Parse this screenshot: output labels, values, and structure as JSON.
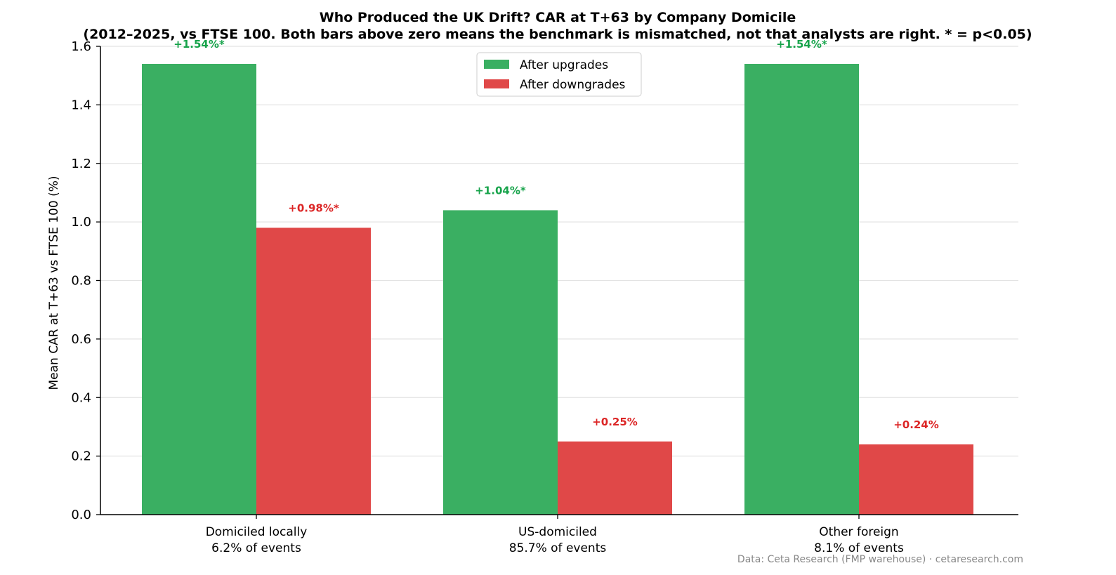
{
  "chart_data": {
    "type": "bar",
    "title": "Who Produced the UK Drift? CAR at T+63 by Company Domicile",
    "subtitle": "(2012–2025, vs FTSE 100. Both bars above zero means the benchmark is mismatched, not that analysts are right. * = p<0.05)",
    "ylabel": "Mean CAR at T+63 vs FTSE 100 (%)",
    "xlabel": "",
    "ylim": [
      0,
      1.6
    ],
    "yticks": [
      "0.0",
      "0.2",
      "0.4",
      "0.6",
      "0.8",
      "1.0",
      "1.2",
      "1.4",
      "1.6"
    ],
    "grid": "horizontal",
    "legend_position": "top-center",
    "categories": [
      [
        "Domiciled locally",
        "6.2% of events"
      ],
      [
        "US-domiciled",
        "85.7% of events"
      ],
      [
        "Other foreign",
        "8.1% of events"
      ]
    ],
    "series": [
      {
        "name": "After upgrades",
        "color": "#3aaf62",
        "label_color": "#16a34a",
        "values": [
          1.54,
          1.04,
          1.54
        ],
        "labels": [
          "+1.54%*",
          "+1.04%*",
          "+1.54%*"
        ]
      },
      {
        "name": "After downgrades",
        "color": "#e04848",
        "label_color": "#dc2626",
        "values": [
          0.98,
          0.25,
          0.24
        ],
        "labels": [
          "+0.98%*",
          "+0.25%",
          "+0.24%"
        ]
      }
    ],
    "source": "Data: Ceta Research (FMP warehouse) · cetaresearch.com"
  }
}
